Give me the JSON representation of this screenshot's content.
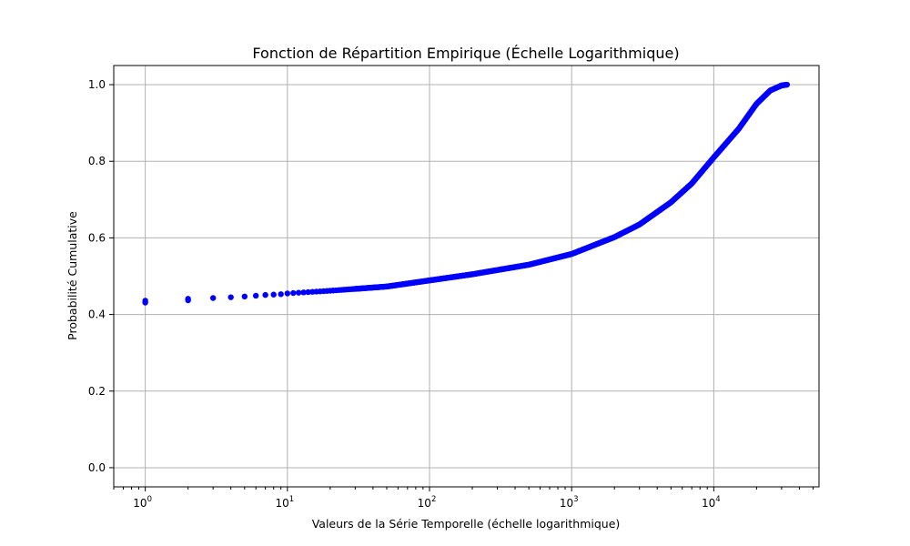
{
  "chart_data": {
    "type": "scatter",
    "title": "Fonction de Répartition Empirique (Échelle Logarithmique)",
    "xlabel": "Valeurs de la Série Temporelle (échelle logarithmique)",
    "ylabel": "Probabilité Cumulative",
    "x_scale": "log",
    "xlim": [
      0.6,
      55000
    ],
    "ylim": [
      -0.05,
      1.05
    ],
    "grid": true,
    "marker_color": "#0000ff",
    "x_ticks": [
      {
        "base": "10",
        "exp": "0",
        "value": 1
      },
      {
        "base": "10",
        "exp": "1",
        "value": 10
      },
      {
        "base": "10",
        "exp": "2",
        "value": 100
      },
      {
        "base": "10",
        "exp": "3",
        "value": 1000
      },
      {
        "base": "10",
        "exp": "4",
        "value": 10000
      }
    ],
    "y_ticks": [
      {
        "label": "0.0",
        "value": 0.0
      },
      {
        "label": "0.2",
        "value": 0.2
      },
      {
        "label": "0.4",
        "value": 0.4
      },
      {
        "label": "0.6",
        "value": 0.6
      },
      {
        "label": "0.8",
        "value": 0.8
      },
      {
        "label": "1.0",
        "value": 1.0
      }
    ],
    "points": [
      [
        1,
        0.431
      ],
      [
        1,
        0.436
      ],
      [
        2,
        0.437
      ],
      [
        2,
        0.441
      ],
      [
        3,
        0.443
      ],
      [
        4,
        0.445
      ],
      [
        5,
        0.447
      ],
      [
        6,
        0.449
      ],
      [
        7,
        0.451
      ],
      [
        8,
        0.452
      ],
      [
        9,
        0.453
      ],
      [
        10,
        0.455
      ],
      [
        20,
        0.462
      ],
      [
        50,
        0.473
      ],
      [
        100,
        0.489
      ],
      [
        200,
        0.505
      ],
      [
        500,
        0.53
      ],
      [
        1000,
        0.558
      ],
      [
        2000,
        0.602
      ],
      [
        3000,
        0.635
      ],
      [
        5000,
        0.693
      ],
      [
        7000,
        0.742
      ],
      [
        10000,
        0.81
      ],
      [
        15000,
        0.885
      ],
      [
        20000,
        0.95
      ],
      [
        25000,
        0.985
      ],
      [
        30000,
        0.998
      ],
      [
        32767,
        1.0
      ]
    ]
  }
}
